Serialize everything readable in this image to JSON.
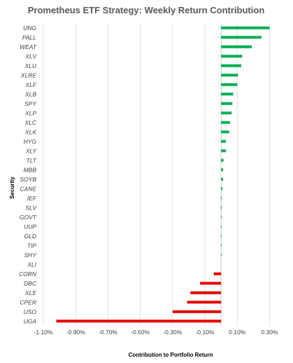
{
  "chart_data": {
    "type": "bar",
    "orientation": "horizontal",
    "title": "Prometheus ETF Strategy: Weekly Return Contribution",
    "xlabel": "Contribution to Portfolio Return",
    "ylabel": "Security",
    "categories": [
      "UNG",
      "PALL",
      "WEAT",
      "XLV",
      "XLU",
      "XLRE",
      "XLF",
      "XLB",
      "SPY",
      "XLP",
      "XLC",
      "XLK",
      "HYG",
      "XLY",
      "TLT",
      "MBB",
      "SOYB",
      "CANE",
      "IEF",
      "SLV",
      "GOVT",
      "UUP",
      "GLD",
      "TIP",
      "SHY",
      "XLI",
      "CORN",
      "DBC",
      "XLE",
      "CPER",
      "USO",
      "UGA"
    ],
    "values": [
      0.3,
      0.25,
      0.19,
      0.13,
      0.125,
      0.105,
      0.1,
      0.075,
      0.07,
      0.065,
      0.055,
      0.05,
      0.03,
      0.03,
      0.015,
      0.013,
      0.012,
      0.008,
      0.004,
      0.004,
      0.003,
      0.003,
      0.003,
      0.002,
      0.002,
      0.0,
      -0.045,
      -0.13,
      -0.19,
      -0.21,
      -0.3,
      -1.02
    ],
    "xlim": [
      -1.1,
      0.35
    ],
    "xticks": [
      -1.1,
      -0.9,
      -0.7,
      -0.5,
      -0.3,
      -0.1,
      0.1,
      0.3
    ],
    "xtick_labels": [
      "-1.10%",
      "-0.90%",
      "-0.70%",
      "-0.50%",
      "-0.30%",
      "-0.10%",
      "0.10%",
      "0.30%"
    ],
    "grid": "vertical",
    "positive_color": "#00B050",
    "negative_color": "#E60000",
    "grid_color": "#D9D9D9",
    "axis_color": "#BFBFBF"
  }
}
